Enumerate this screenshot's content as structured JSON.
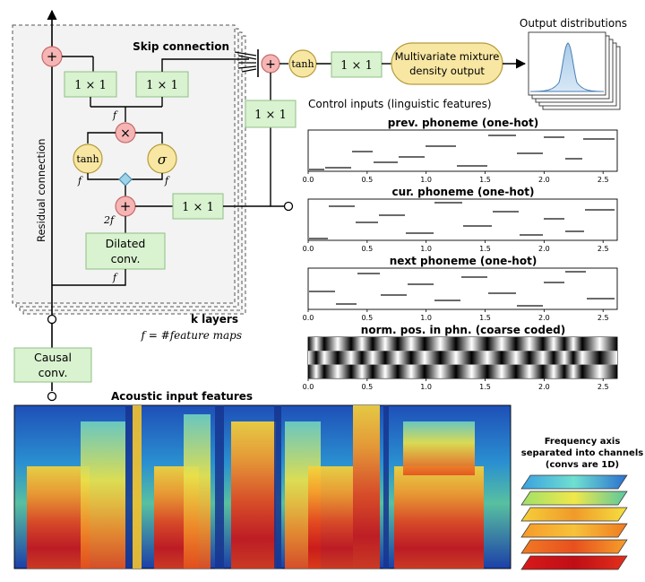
{
  "labels": {
    "skip_connection": "Skip connection",
    "residual_connection": "Residual connection",
    "conv_1x1": "1 × 1",
    "tanh": "tanh",
    "sigma": "σ",
    "times": "×",
    "plus": "+",
    "f": "f",
    "two_f": "2f",
    "dilated_conv_line1": "Dilated",
    "dilated_conv_line2": "conv.",
    "k_layers": "k layers",
    "f_def": "f = #feature maps",
    "causal_conv_line1": "Causal",
    "causal_conv_line2": "conv.",
    "mdn_line1": "Multivariate mixture",
    "mdn_line2": "density output",
    "output_distributions": "Output distributions",
    "control_inputs": "Control inputs (linguistic features)",
    "acoustic_input": "Acoustic input features",
    "freq_line1": "Frequency axis",
    "freq_line2": "separated into channels",
    "freq_line3": "(convs are 1D)"
  },
  "feature_plots": [
    {
      "title": "prev. phoneme (one-hot)"
    },
    {
      "title": "cur. phoneme (one-hot)"
    },
    {
      "title": "next phoneme (one-hot)"
    },
    {
      "title": "norm. pos. in phn. (coarse coded)"
    }
  ],
  "time_axis": {
    "ticks": [
      "0.0",
      "0.5",
      "1.0",
      "1.5",
      "2.0",
      "2.5"
    ],
    "values": [
      0.0,
      0.5,
      1.0,
      1.5,
      2.0,
      2.5
    ],
    "range": [
      0.0,
      2.62
    ]
  },
  "colors": {
    "conv_box": "#d9f2d0",
    "conv_border": "#8fbf85",
    "op_circle": "#f5b5b5",
    "op_border": "#c86b6b",
    "activation": "#f8e7a3",
    "activation_border": "#b69b3a",
    "gate_diamond": "#9fd3e8",
    "panel": "#f3f3f3"
  }
}
